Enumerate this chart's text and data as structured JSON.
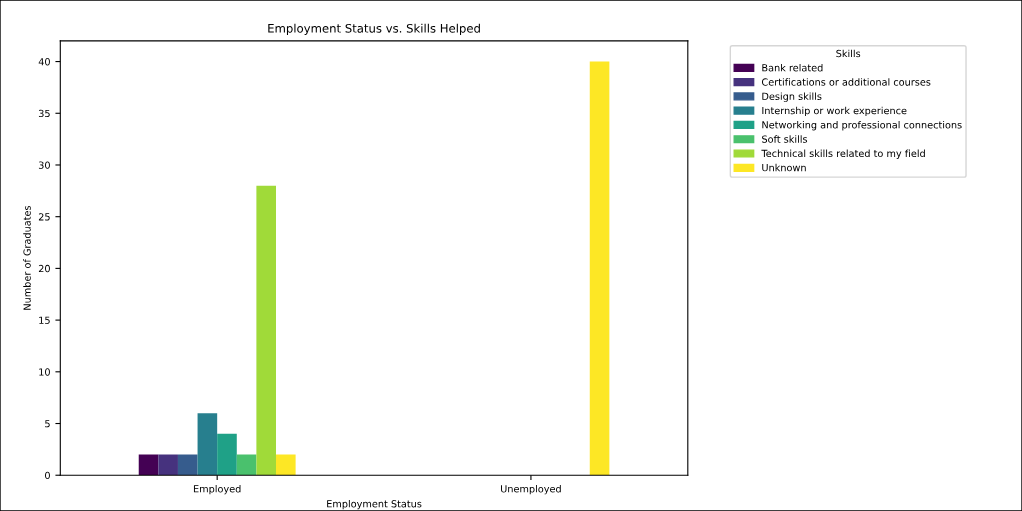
{
  "chart_data": {
    "type": "bar",
    "title": "Employment Status vs. Skills Helped",
    "xlabel": "Employment Status",
    "ylabel": "Number of Graduates",
    "legend_title": "Skills",
    "categories": [
      "Employed",
      "Unemployed"
    ],
    "series": [
      {
        "name": "Bank related",
        "color": "#440154",
        "values": [
          2,
          0
        ]
      },
      {
        "name": "Certifications or additional courses",
        "color": "#46327e",
        "values": [
          2,
          0
        ]
      },
      {
        "name": "Design skills",
        "color": "#365c8d",
        "values": [
          2,
          0
        ]
      },
      {
        "name": "Internship or work experience",
        "color": "#277f8e",
        "values": [
          6,
          0
        ]
      },
      {
        "name": "Networking and professional connections",
        "color": "#1fa187",
        "values": [
          4,
          0
        ]
      },
      {
        "name": "Soft skills",
        "color": "#4ac16d",
        "values": [
          2,
          0
        ]
      },
      {
        "name": "Technical skills related to my field",
        "color": "#a0da39",
        "values": [
          28,
          0
        ]
      },
      {
        "name": "Unknown",
        "color": "#fde725",
        "values": [
          2,
          40
        ]
      }
    ],
    "ylim": [
      0,
      42
    ],
    "yticks": [
      0,
      5,
      10,
      15,
      20,
      25,
      30,
      35,
      40
    ],
    "grid": false,
    "legend": "top right"
  }
}
